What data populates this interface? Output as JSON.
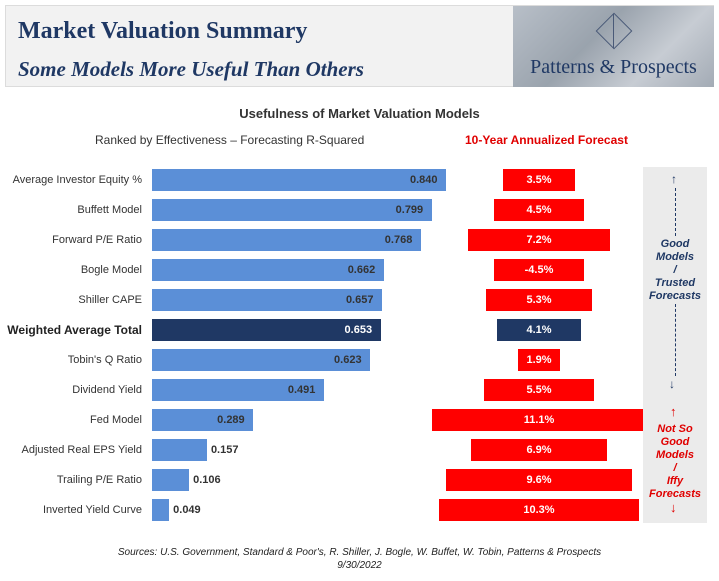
{
  "header": {
    "title": "Market Valuation Summary",
    "subtitle": "Some Models More Useful Than Others",
    "logo_text": "Patterns & Prospects"
  },
  "colors": {
    "bar": "#5b8fd7",
    "highlight": "#1f3864",
    "forecast": "#ff0000",
    "title_blue": "#1f3864"
  },
  "side_panel": {
    "good_lines": [
      "Good",
      "Models",
      "/",
      "Trusted",
      "Forecasts"
    ],
    "bad_lines": [
      "Not So",
      "Good",
      "Models",
      "/",
      "Iffy",
      "Forecasts"
    ]
  },
  "source": {
    "line1": "Sources: U.S. Government, Standard & Poor's, R. Shiller, J. Bogle, W. Buffet, W. Tobin, Patterns & Prospects",
    "line2": "9/30/2022"
  },
  "chart_data": {
    "type": "bar",
    "orientation": "horizontal",
    "title": "Usefulness of Market Valuation Models",
    "left_subtitle": "Ranked by Effectiveness – Forecasting R-Squared",
    "right_subtitle": "10-Year Annualized Forecast",
    "categories": [
      "Average Investor Equity %",
      "Buffett Model",
      "Forward P/E Ratio",
      "Bogle Model",
      "Shiller CAPE",
      "Weighted Average Total",
      "Tobin's Q Ratio",
      "Dividend Yield",
      "Fed Model",
      "Adjusted Real EPS Yield",
      "Trailing P/E Ratio",
      "Inverted Yield Curve"
    ],
    "highlight_index": 5,
    "series": [
      {
        "values": [
          0.84,
          0.799,
          0.768,
          0.662,
          0.657,
          0.653,
          0.623,
          0.491,
          0.289,
          0.157,
          0.106,
          0.049
        ],
        "labels": [
          "0.840",
          "0.799",
          "0.768",
          "0.662",
          "0.657",
          "0.653",
          "0.623",
          "0.491",
          "0.289",
          "0.157",
          "0.106",
          "0.049"
        ]
      },
      {
        "values": [
          3.5,
          4.5,
          7.2,
          -4.5,
          5.3,
          4.1,
          1.9,
          5.5,
          11.1,
          6.9,
          9.6,
          10.3
        ],
        "labels": [
          "3.5%",
          "4.5%",
          "7.2%",
          "-4.5%",
          "5.3%",
          "4.1%",
          "1.9%",
          "5.5%",
          "11.1%",
          "6.9%",
          "9.6%",
          "10.3%"
        ]
      }
    ],
    "r_squared_range": [
      0,
      1
    ],
    "grid": false,
    "legend": "none"
  }
}
